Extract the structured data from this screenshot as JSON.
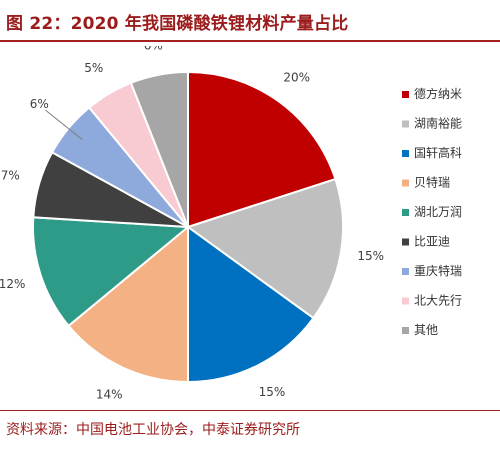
{
  "header": {
    "title": "图 22：2020 年我国磷酸铁锂材料产量占比"
  },
  "footer": {
    "source": "资料来源：中国电池工业协会，中泰证券研究所"
  },
  "chart_data": {
    "type": "pie",
    "title": "",
    "start": "12 o'clock",
    "direction": "clockwise",
    "legend": "right",
    "categories": [
      "德方纳米",
      "湖南裕能",
      "国轩高科",
      "贝特瑞",
      "湖北万润",
      "比亚迪",
      "重庆特瑞",
      "北大先行",
      "其他"
    ],
    "values": [
      20,
      15,
      15,
      14,
      12,
      7,
      6,
      5,
      6
    ],
    "labels": [
      "20%",
      "15%",
      "15%",
      "14%",
      "12%",
      "7%",
      "6%",
      "5%",
      "6%"
    ],
    "colors": [
      "#c00000",
      "#bfbfbf",
      "#0070c0",
      "#f4b183",
      "#2e9b88",
      "#404040",
      "#8ea9db",
      "#f8cbd3",
      "#a6a6a6"
    ]
  }
}
